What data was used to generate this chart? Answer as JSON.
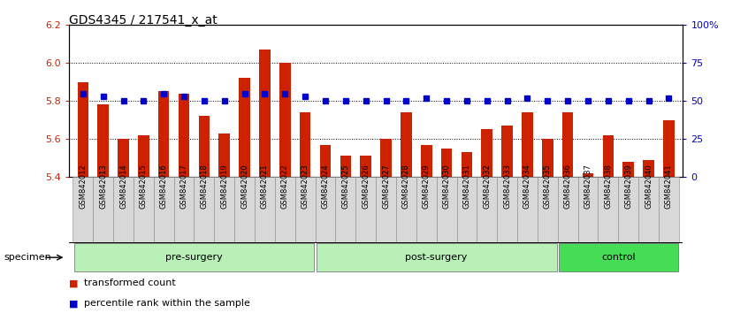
{
  "title": "GDS4345 / 217541_x_at",
  "samples": [
    "GSM842012",
    "GSM842013",
    "GSM842014",
    "GSM842015",
    "GSM842016",
    "GSM842017",
    "GSM842018",
    "GSM842019",
    "GSM842020",
    "GSM842021",
    "GSM842022",
    "GSM842023",
    "GSM842024",
    "GSM842025",
    "GSM842026",
    "GSM842027",
    "GSM842028",
    "GSM842029",
    "GSM842030",
    "GSM842031",
    "GSM842032",
    "GSM842033",
    "GSM842034",
    "GSM842035",
    "GSM842036",
    "GSM842037",
    "GSM842038",
    "GSM842039",
    "GSM842040",
    "GSM842041"
  ],
  "transformed_count": [
    5.9,
    5.78,
    5.6,
    5.62,
    5.85,
    5.84,
    5.72,
    5.63,
    5.92,
    6.07,
    6.0,
    5.74,
    5.57,
    5.51,
    5.51,
    5.6,
    5.74,
    5.57,
    5.55,
    5.53,
    5.65,
    5.67,
    5.74,
    5.6,
    5.74,
    5.42,
    5.62,
    5.48,
    5.49,
    5.7
  ],
  "percentile_rank": [
    55,
    53,
    50,
    50,
    55,
    53,
    50,
    50,
    55,
    55,
    55,
    53,
    50,
    50,
    50,
    50,
    50,
    52,
    50,
    50,
    50,
    50,
    52,
    50,
    50,
    50,
    50,
    50,
    50,
    52
  ],
  "groups": [
    {
      "label": "pre-surgery",
      "start": 0,
      "end": 11,
      "color": "#b8f0b8"
    },
    {
      "label": "post-surgery",
      "start": 12,
      "end": 23,
      "color": "#b8f0b8"
    },
    {
      "label": "control",
      "start": 24,
      "end": 29,
      "color": "#44dd55"
    }
  ],
  "ylim_left": [
    5.4,
    6.2
  ],
  "ylim_right": [
    0,
    100
  ],
  "yticks_left": [
    5.4,
    5.6,
    5.8,
    6.0,
    6.2
  ],
  "yticks_right": [
    0,
    25,
    50,
    75,
    100
  ],
  "ytick_right_labels": [
    "0",
    "25",
    "50",
    "75",
    "100%"
  ],
  "bar_color": "#cc2200",
  "dot_color": "#0000cc",
  "bar_bottom": 5.4,
  "grid_values": [
    5.6,
    5.8,
    6.0
  ],
  "legend": [
    {
      "label": "transformed count",
      "color": "#cc2200"
    },
    {
      "label": "percentile rank within the sample",
      "color": "#0000cc"
    }
  ],
  "specimen_label": "specimen"
}
